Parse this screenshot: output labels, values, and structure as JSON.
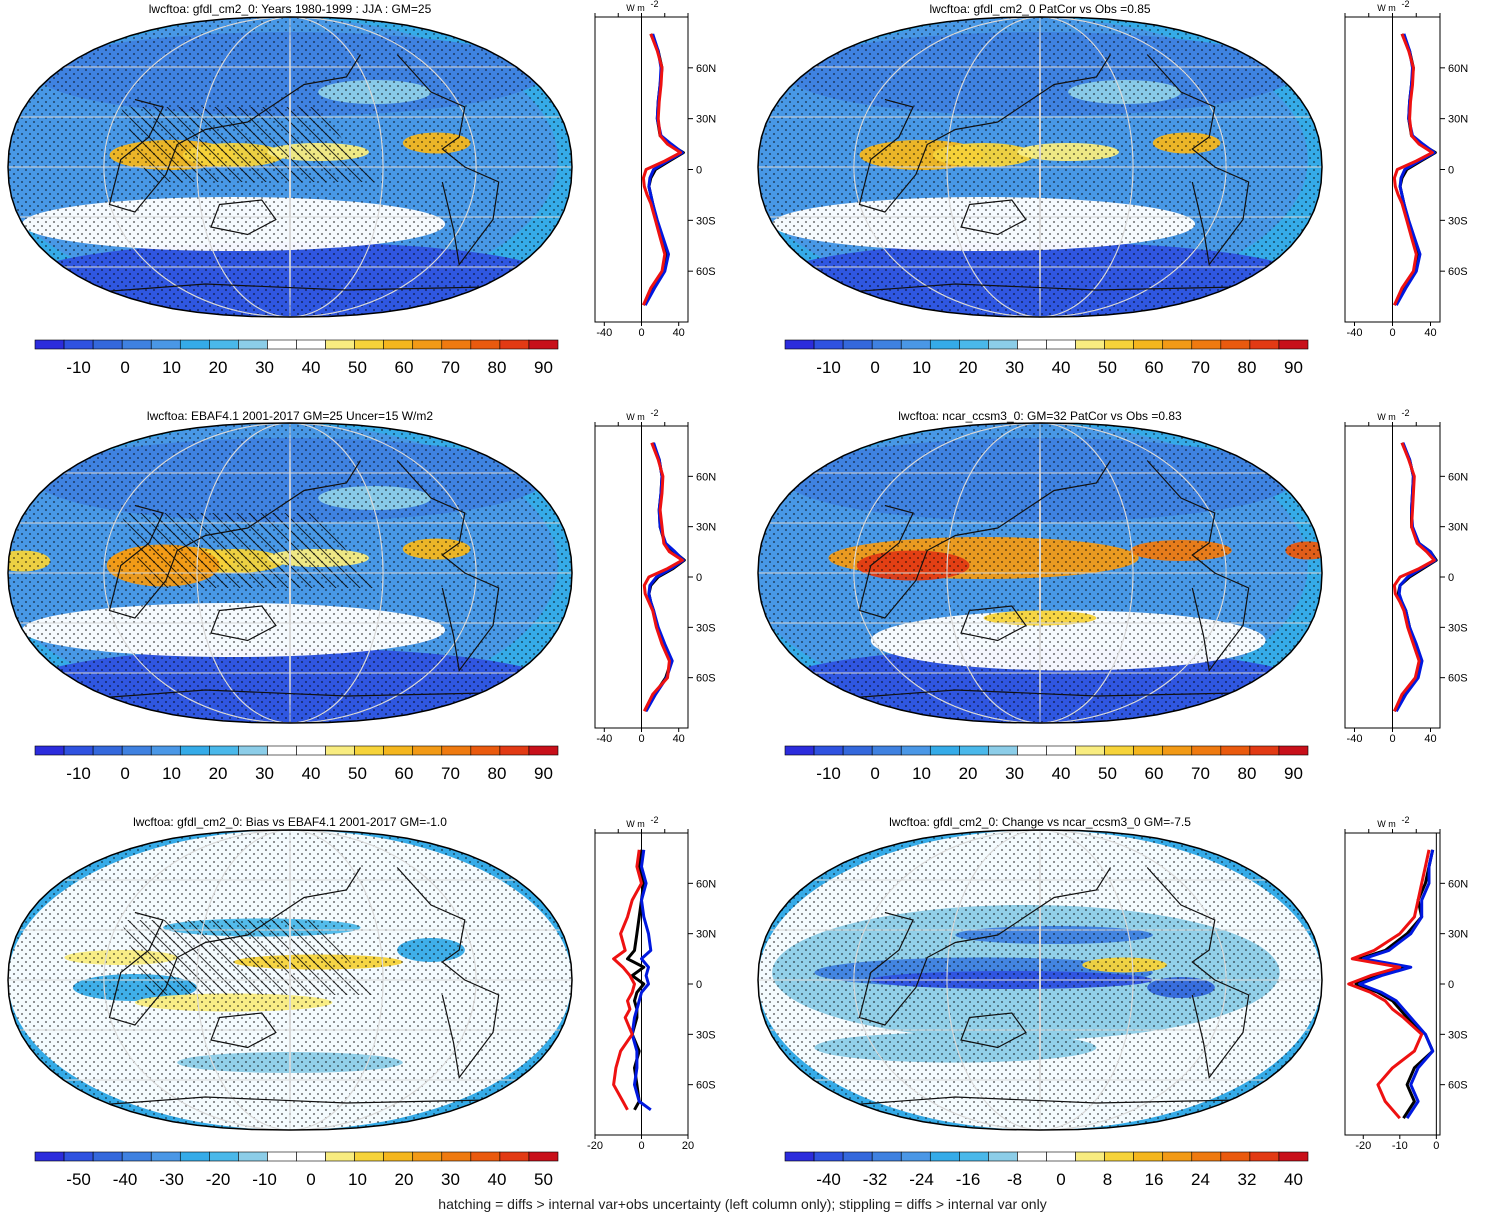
{
  "footer": "hatching = diffs > internal var+obs uncertainty (left column only); stippling = diffs > internal var only",
  "colors": {
    "palette": [
      "#2c2cdc",
      "#2f52e0",
      "#3468dc",
      "#3f81e0",
      "#4a97e6",
      "#35abe8",
      "#4ab8ea",
      "#8ccde8",
      "#ffffff",
      "#ffffff",
      "#f8ec80",
      "#f6d33a",
      "#f4b61e",
      "#f29a16",
      "#ef7a10",
      "#ea5a0e",
      "#e23a14",
      "#c8101a"
    ],
    "obs_line": "#0018e0",
    "model_line": "#000000",
    "alt_line": "#ee1111",
    "grid": "#d8d8d8",
    "coast": "#111111"
  },
  "chart_data": [
    {
      "type": "heatmap",
      "panel": "top-left",
      "title": "lwcftoa: gfdl_cm2_0: Years 1980-1999 : JJA : GM=25",
      "projection": "Robinson",
      "hatching": true,
      "colorbar_labels": [
        "-10",
        "0",
        "10",
        "20",
        "30",
        "40",
        "50",
        "60",
        "70",
        "80",
        "90"
      ],
      "profile": {
        "unit_label": "W m",
        "unit_sup": "-2",
        "xticks": [
          "-40",
          "0",
          "40"
        ],
        "xlim": [
          -50,
          50
        ],
        "lat_ticks": [
          "60N",
          "30N",
          "0",
          "30S",
          "60S"
        ],
        "lat_values": [
          60,
          30,
          0,
          -30,
          -60
        ],
        "lat": [
          80,
          70,
          60,
          50,
          40,
          30,
          20,
          15,
          10,
          5,
          0,
          -5,
          -10,
          -15,
          -20,
          -30,
          -40,
          -50,
          -60,
          -70,
          -80
        ],
        "series": [
          {
            "name": "model",
            "color": "#000000",
            "values": [
              10,
              18,
              22,
              20,
              18,
              17,
              20,
              30,
              45,
              30,
              15,
              10,
              8,
              10,
              12,
              16,
              22,
              28,
              24,
              12,
              2
            ]
          },
          {
            "name": "obs",
            "color": "#0018e0",
            "values": [
              12,
              18,
              21,
              20,
              18,
              17,
              21,
              32,
              44,
              28,
              13,
              9,
              8,
              10,
              12,
              17,
              23,
              29,
              25,
              14,
              4
            ]
          },
          {
            "name": "alt",
            "color": "#ee1111",
            "values": [
              10,
              17,
              22,
              21,
              19,
              18,
              20,
              28,
              42,
              25,
              5,
              2,
              3,
              6,
              10,
              15,
              20,
              25,
              22,
              10,
              2
            ]
          }
        ]
      }
    },
    {
      "type": "heatmap",
      "panel": "top-right",
      "title": "lwcftoa: gfdl_cm2_0 PatCor vs Obs =0.85",
      "projection": "Robinson",
      "hatching": false,
      "colorbar_labels": [
        "-10",
        "0",
        "10",
        "20",
        "30",
        "40",
        "50",
        "60",
        "70",
        "80",
        "90"
      ],
      "profile": {
        "unit_label": "W m",
        "unit_sup": "-2",
        "xticks": [
          "-40",
          "0",
          "40"
        ],
        "xlim": [
          -50,
          50
        ],
        "lat_ticks": [
          "60N",
          "30N",
          "0",
          "30S",
          "60S"
        ],
        "lat_values": [
          60,
          30,
          0,
          -30,
          -60
        ],
        "lat": [
          80,
          70,
          60,
          50,
          40,
          30,
          20,
          15,
          10,
          5,
          0,
          -5,
          -10,
          -15,
          -20,
          -30,
          -40,
          -50,
          -60,
          -70,
          -80
        ],
        "series": [
          {
            "name": "model",
            "color": "#000000",
            "values": [
              10,
              18,
              22,
              20,
              18,
              17,
              20,
              30,
              45,
              30,
              15,
              10,
              8,
              10,
              12,
              16,
              22,
              28,
              24,
              12,
              2
            ]
          },
          {
            "name": "obs",
            "color": "#0018e0",
            "values": [
              12,
              18,
              21,
              20,
              18,
              17,
              21,
              32,
              44,
              28,
              13,
              9,
              8,
              10,
              12,
              17,
              23,
              29,
              25,
              14,
              4
            ]
          },
          {
            "name": "alt",
            "color": "#ee1111",
            "values": [
              10,
              17,
              22,
              21,
              19,
              18,
              20,
              28,
              42,
              25,
              5,
              2,
              3,
              6,
              10,
              15,
              20,
              25,
              22,
              10,
              2
            ]
          }
        ]
      }
    },
    {
      "type": "heatmap",
      "panel": "middle-left",
      "title": "lwcftoa: EBAF4.1 2001-2017 GM=25 Uncer=15 W/m2",
      "projection": "Robinson",
      "hatching": true,
      "colorbar_labels": [
        "-10",
        "0",
        "10",
        "20",
        "30",
        "40",
        "50",
        "60",
        "70",
        "80",
        "90"
      ],
      "profile": {
        "unit_label": "W m",
        "unit_sup": "-2",
        "xticks": [
          "-40",
          "0",
          "40"
        ],
        "xlim": [
          -50,
          50
        ],
        "lat_ticks": [
          "60N",
          "30N",
          "0",
          "30S",
          "60S"
        ],
        "lat_values": [
          60,
          30,
          0,
          -30,
          -60
        ],
        "lat": [
          80,
          70,
          60,
          50,
          40,
          30,
          20,
          15,
          10,
          5,
          0,
          -5,
          -10,
          -15,
          -20,
          -30,
          -40,
          -50,
          -60,
          -70,
          -80
        ],
        "series": [
          {
            "name": "model",
            "color": "#000000",
            "values": [
              12,
              19,
              22,
              21,
              19,
              20,
              25,
              35,
              46,
              34,
              18,
              10,
              8,
              10,
              13,
              17,
              24,
              32,
              26,
              14,
              4
            ]
          },
          {
            "name": "obs",
            "color": "#0018e0",
            "values": [
              13,
              19,
              22,
              21,
              19,
              20,
              26,
              36,
              45,
              32,
              16,
              9,
              8,
              10,
              13,
              18,
              25,
              33,
              27,
              15,
              5
            ]
          },
          {
            "name": "alt",
            "color": "#ee1111",
            "values": [
              11,
              18,
              23,
              22,
              20,
              22,
              24,
              30,
              44,
              28,
              8,
              3,
              4,
              8,
              12,
              16,
              22,
              30,
              28,
              12,
              3
            ]
          }
        ]
      }
    },
    {
      "type": "heatmap",
      "panel": "middle-right",
      "title": "lwcftoa: ncar_ccsm3_0: GM=32 PatCor vs Obs =0.83",
      "projection": "Robinson",
      "hatching": false,
      "colorbar_labels": [
        "-10",
        "0",
        "10",
        "20",
        "30",
        "40",
        "50",
        "60",
        "70",
        "80",
        "90"
      ],
      "profile": {
        "unit_label": "W m",
        "unit_sup": "-2",
        "xticks": [
          "-40",
          "0",
          "40"
        ],
        "xlim": [
          -50,
          50
        ],
        "lat_ticks": [
          "60N",
          "30N",
          "0",
          "30S",
          "60S"
        ],
        "lat_values": [
          60,
          30,
          0,
          -30,
          -60
        ],
        "lat": [
          80,
          70,
          60,
          50,
          40,
          30,
          20,
          15,
          10,
          5,
          0,
          -5,
          -10,
          -15,
          -20,
          -30,
          -40,
          -50,
          -60,
          -70,
          -80
        ],
        "series": [
          {
            "name": "model",
            "color": "#000000",
            "values": [
              10,
              18,
              22,
              21,
              20,
              20,
              28,
              40,
              46,
              32,
              18,
              8,
              6,
              10,
              14,
              18,
              24,
              30,
              26,
              12,
              2
            ]
          },
          {
            "name": "obs",
            "color": "#0018e0",
            "values": [
              11,
              18,
              22,
              21,
              20,
              21,
              28,
              40,
              45,
              30,
              16,
              8,
              7,
              10,
              14,
              18,
              25,
              31,
              27,
              14,
              4
            ]
          },
          {
            "name": "alt",
            "color": "#ee1111",
            "values": [
              10,
              17,
              23,
              22,
              21,
              20,
              26,
              36,
              44,
              28,
              8,
              2,
              3,
              8,
              12,
              16,
              22,
              28,
              24,
              10,
              2
            ]
          }
        ]
      }
    },
    {
      "type": "heatmap",
      "panel": "bottom-left",
      "title": "lwcftoa: gfdl_cm2_0: Bias vs EBAF4.1 2001-2017 GM=-1.0",
      "projection": "Robinson",
      "hatching": true,
      "colorbar_labels": [
        "-50",
        "-40",
        "-30",
        "-20",
        "-10",
        "0",
        "10",
        "20",
        "30",
        "40",
        "50"
      ],
      "profile": {
        "unit_label": "W m",
        "unit_sup": "-2",
        "xticks": [
          "-20",
          "0",
          "20"
        ],
        "xlim": [
          -20,
          20
        ],
        "lat_ticks": [
          "60N",
          "30N",
          "0",
          "30S",
          "60S"
        ],
        "lat_values": [
          60,
          30,
          0,
          -30,
          -60
        ],
        "lat": [
          80,
          70,
          60,
          50,
          40,
          30,
          20,
          15,
          10,
          5,
          0,
          -5,
          -10,
          -15,
          -20,
          -30,
          -40,
          -50,
          -60,
          -70,
          -75
        ],
        "series": [
          {
            "name": "model",
            "color": "#000000",
            "values": [
              0,
              -1,
              1,
              0,
              -1,
              -2,
              -3,
              -6,
              1,
              -4,
              1,
              -2,
              -3,
              -2,
              -2,
              -4,
              -1,
              -3,
              -2,
              -1,
              -3
            ]
          },
          {
            "name": "obs",
            "color": "#0018e0",
            "values": [
              1,
              0,
              2,
              0,
              1,
              3,
              4,
              0,
              3,
              2,
              3,
              0,
              -1,
              -2,
              -3,
              -4,
              -2,
              -2,
              -3,
              -1,
              4
            ]
          },
          {
            "name": "alt",
            "color": "#ee1111",
            "values": [
              -1,
              -2,
              0,
              -4,
              -6,
              -9,
              -7,
              -12,
              -8,
              -5,
              -3,
              -4,
              -6,
              -5,
              -7,
              -4,
              -9,
              -11,
              -12,
              -8,
              -6
            ]
          }
        ]
      }
    },
    {
      "type": "heatmap",
      "panel": "bottom-right",
      "title": "lwcftoa: gfdl_cm2_0: Change vs ncar_ccsm3_0 GM=-7.5",
      "projection": "Robinson",
      "hatching": false,
      "colorbar_labels": [
        "-40",
        "-32",
        "-24",
        "-16",
        "-8",
        "0",
        "8",
        "16",
        "24",
        "32",
        "40"
      ],
      "profile": {
        "unit_label": "W m",
        "unit_sup": "-2",
        "xticks": [
          "-20",
          "-10",
          "0"
        ],
        "xlim": [
          -25,
          1
        ],
        "lat_ticks": [
          "60N",
          "30N",
          "0",
          "30S",
          "60S"
        ],
        "lat_values": [
          60,
          30,
          0,
          -30,
          -60
        ],
        "lat": [
          80,
          70,
          60,
          50,
          40,
          30,
          20,
          15,
          10,
          5,
          0,
          -5,
          -10,
          -15,
          -20,
          -30,
          -40,
          -50,
          -60,
          -70,
          -80
        ],
        "series": [
          {
            "name": "model",
            "color": "#000000",
            "values": [
              -1,
              -2,
              -3,
              -5,
              -4,
              -8,
              -14,
              -21,
              -8,
              -16,
              -22,
              -16,
              -12,
              -10,
              -8,
              -3,
              -1,
              -6,
              -8,
              -6,
              -9
            ]
          },
          {
            "name": "obs",
            "color": "#0018e0",
            "values": [
              -1,
              -2,
              -2,
              -4,
              -4,
              -7,
              -13,
              -20,
              -7,
              -15,
              -21,
              -15,
              -11,
              -9,
              -7,
              -3,
              -1,
              -5,
              -7,
              -5,
              -8
            ]
          },
          {
            "name": "alt",
            "color": "#ee1111",
            "values": [
              -2,
              -3,
              -4,
              -5,
              -6,
              -10,
              -17,
              -23,
              -10,
              -18,
              -24,
              -18,
              -14,
              -12,
              -9,
              -4,
              -6,
              -12,
              -16,
              -14,
              -10
            ]
          }
        ]
      }
    }
  ]
}
